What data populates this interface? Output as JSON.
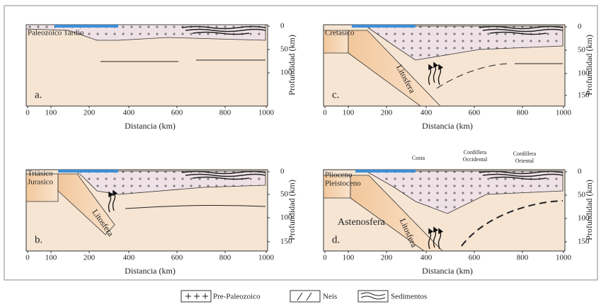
{
  "panels": [
    {
      "label": "a.",
      "era": [
        "Paleozoico Tardio"
      ],
      "x_axis_label": "Distancia (km)",
      "y_axis_label": "Profundidad (km)",
      "x_ticks": [
        "0",
        "100",
        "200",
        "400",
        "600",
        "800",
        "1000"
      ],
      "y_ticks": [
        "0",
        "50",
        "100"
      ],
      "annotations": []
    },
    {
      "label": "b.",
      "era": [
        "Triásico",
        "Jurasico"
      ],
      "x_axis_label": "Distancia (km)",
      "y_axis_label": "Profundidad (km)",
      "x_ticks": [
        "0",
        "100",
        "200",
        "400",
        "600",
        "800",
        "1000"
      ],
      "y_ticks": [
        "0",
        "50",
        "100",
        "150"
      ],
      "annotations": [
        [
          "Litosfera"
        ]
      ]
    },
    {
      "label": "c.",
      "era": [
        "Cretasico"
      ],
      "x_axis_label": "Distancia (km)",
      "y_axis_label": "Profundidad (km)",
      "x_ticks": [
        "0",
        "100",
        "200",
        "400",
        "600",
        "800",
        "1000"
      ],
      "y_ticks": [
        "0",
        "50",
        "100",
        "150"
      ],
      "annotations": [
        [
          "Litosfera"
        ]
      ]
    },
    {
      "label": "d.",
      "era": [
        "Plioceno",
        "Pleistoceno"
      ],
      "x_axis_label": "Distancia (km)",
      "y_axis_label": "Profundidad (km)",
      "x_ticks": [
        "0",
        "100",
        "200",
        "400",
        "600",
        "800",
        "1000"
      ],
      "y_ticks": [
        "0",
        "50",
        "100",
        "150"
      ],
      "annotations": [
        [
          "Litosfera"
        ],
        [
          "Astenosfera"
        ],
        [
          "Costa"
        ],
        [
          "Cordillera",
          "Occidental"
        ],
        [
          "Cordillera",
          "Oriental"
        ]
      ]
    }
  ],
  "legend": [
    "Pre-Paleozoico",
    "Neis",
    "Sedimentos"
  ]
}
